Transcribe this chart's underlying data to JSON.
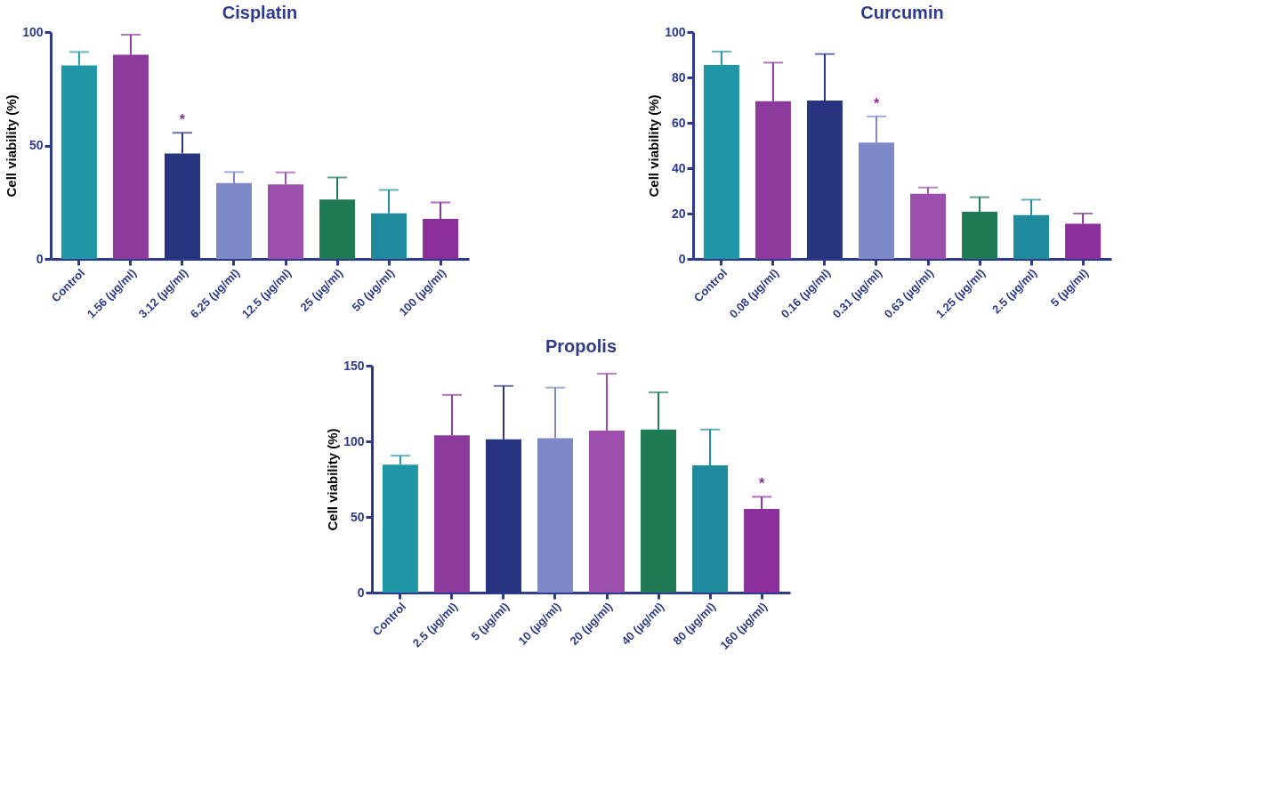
{
  "chart_data": [
    {
      "type": "bar",
      "title": "Cisplatin",
      "ylabel": "Cell viability (%)",
      "categories": [
        "Control",
        "1.56 (µg/ml)",
        "3.12 (µg/ml)",
        "6.25 (µg/ml)",
        "12.5 (µg/ml)",
        "25 (µg/ml)",
        "50 (µg/ml)",
        "100 (µg/ml)"
      ],
      "values": [
        85.3,
        90,
        46.5,
        33.4,
        32.8,
        26.2,
        20.1,
        17.6
      ],
      "errors": [
        [
          85.3,
          91.2
        ],
        [
          90,
          98.8
        ],
        [
          46.5,
          55.6
        ],
        [
          33.4,
          38.3
        ],
        [
          32.8,
          38.1
        ],
        [
          26.2,
          35.9
        ],
        [
          20.1,
          30.4
        ],
        [
          17.6,
          24.9
        ]
      ],
      "colors": [
        "#1f97a6",
        "#8c3a9c",
        "#27347f",
        "#7d88c8",
        "#9d4fae",
        "#1d7a52",
        "#1f8a9c",
        "#8a2f9c"
      ],
      "ylim": [
        0,
        100
      ],
      "yticks": [
        0,
        50,
        100
      ],
      "value_labels": [
        null,
        null,
        "*",
        null,
        null,
        null,
        null,
        null
      ]
    },
    {
      "type": "bar",
      "title": "Curcumin",
      "ylabel": "Cell viability (%)",
      "categories": [
        "Control",
        "0.08 (µg/ml)",
        "0.16 (µg/ml)",
        "0.31 (µg/ml)",
        "0.63 (µg/ml)",
        "1.25 (µg/ml)",
        "2.5 (µg/ml)",
        "5 (µg/ml)"
      ],
      "values": [
        85.5,
        69.5,
        69.8,
        51.3,
        28.7,
        20.8,
        19.3,
        15.5
      ],
      "errors": [
        [
          85.5,
          91.4
        ],
        [
          69.5,
          86.5
        ],
        [
          69.8,
          90.3
        ],
        [
          51.3,
          62.8
        ],
        [
          28.7,
          31.5
        ],
        [
          20.8,
          27.2
        ],
        [
          19.3,
          26.1
        ],
        [
          15.5,
          20
        ]
      ],
      "colors": [
        "#1f97a6",
        "#8c3a9c",
        "#27347f",
        "#7d88c8",
        "#9d4fae",
        "#1d7a52",
        "#1f8a9c",
        "#8a2f9c"
      ],
      "ylim": [
        0,
        100
      ],
      "yticks": [
        0,
        20,
        40,
        60,
        80,
        100
      ],
      "value_labels": [
        null,
        null,
        null,
        "*",
        null,
        null,
        null,
        null
      ]
    },
    {
      "type": "bar",
      "title": "Propolis",
      "ylabel": "Cell viability (%)",
      "categories": [
        "Control",
        "2.5 (µg/ml)",
        "5 (µg/ml)",
        "10 (µg/ml)",
        "20 (µg/ml)",
        "40 (µg/ml)",
        "80 (µg/ml)",
        "160 (µg/ml)"
      ],
      "values": [
        84.6,
        103.9,
        101.3,
        102.1,
        107,
        107.8,
        84.1,
        55.3
      ],
      "errors": [
        [
          84.6,
          90.5
        ],
        [
          103.9,
          130.7
        ],
        [
          101.3,
          136.6
        ],
        [
          102.1,
          135.5
        ],
        [
          107,
          144.7
        ],
        [
          107.8,
          132.4
        ],
        [
          84.1,
          107.8
        ],
        [
          55.3,
          63.3
        ]
      ],
      "colors": [
        "#1f97a6",
        "#8c3a9c",
        "#27347f",
        "#7d88c8",
        "#9d4fae",
        "#1d7a52",
        "#1f8a9c",
        "#8a2f9c"
      ],
      "ylim": [
        0,
        150
      ],
      "yticks": [
        0,
        50,
        100,
        150
      ],
      "value_labels": [
        null,
        null,
        null,
        null,
        null,
        null,
        null,
        "*"
      ]
    }
  ]
}
